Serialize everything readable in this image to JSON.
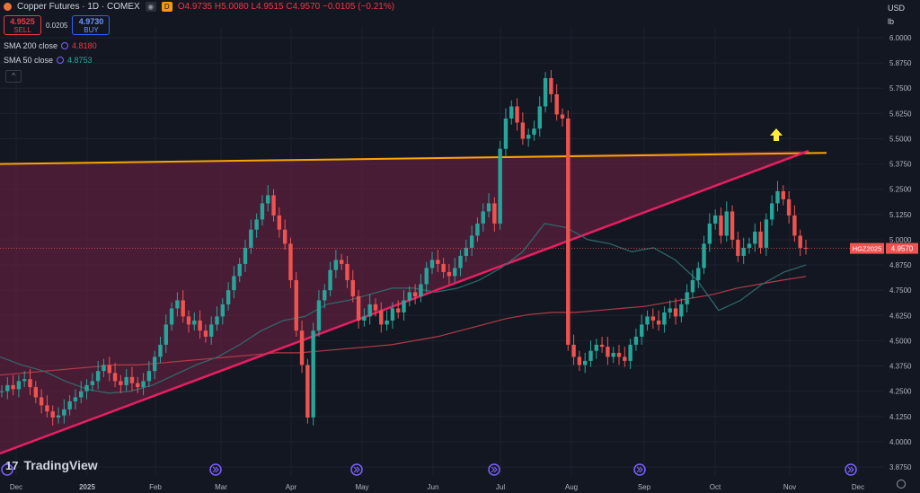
{
  "header": {
    "title": "Copper Futures · 1D · COMEX",
    "open": "O4.9735",
    "high": "H5.0080",
    "low": "L4.9515",
    "close": "C4.9570",
    "change": "−0.0105 (−0.21%)",
    "badge_d": "D"
  },
  "trade": {
    "sell_price": "4.9525",
    "sell_label": "SELL",
    "spread": "0.0205",
    "buy_price": "4.9730",
    "buy_label": "BUY"
  },
  "indicators": [
    {
      "label": "SMA 200 close",
      "value": "4.8180",
      "color": "#f23645"
    },
    {
      "label": "SMA 50 close",
      "value": "4.8753",
      "color": "#26a69a"
    }
  ],
  "collapse_icon": "^",
  "right_header": {
    "currency": "USD",
    "unit": "lb"
  },
  "logo_text": "TradingView",
  "logo_mark": "17",
  "colors": {
    "background": "#131722",
    "up": "#26a69a",
    "down": "#ef5350",
    "resistance": "#f7a600",
    "trendline": "#e91e63",
    "triangle_fill": "#5c1f3d",
    "arrow": "#ffeb3b",
    "sma200": "#b23a48",
    "sma50": "#2f6b6b"
  },
  "chart_data": {
    "type": "candlestick",
    "symbol_tag": "HGZ2025",
    "last_price": "4.9570",
    "y_ticks": [
      "6.0000",
      "5.8750",
      "5.7500",
      "5.6250",
      "5.5000",
      "5.3750",
      "5.2500",
      "5.1250",
      "5.0000",
      "4.8750",
      "4.7500",
      "4.6250",
      "4.5000",
      "4.3750",
      "4.2500",
      "4.1250",
      "4.0000",
      "3.8750"
    ],
    "x_ticks": [
      "Dec",
      "2025",
      "Feb",
      "Mar",
      "Apr",
      "May",
      "Jun",
      "Jul",
      "Aug",
      "Sep",
      "Oct",
      "Nov",
      "Dec"
    ],
    "events": [
      "Feb",
      "Apr",
      "Jun",
      "Aug",
      "Oct",
      "Dec"
    ],
    "ylim": [
      3.85,
      6.03
    ],
    "close_series": [
      4.25,
      4.28,
      4.26,
      4.3,
      4.31,
      4.27,
      4.22,
      4.18,
      4.15,
      4.12,
      4.13,
      4.16,
      4.2,
      4.22,
      4.25,
      4.28,
      4.3,
      4.35,
      4.38,
      4.34,
      4.3,
      4.28,
      4.32,
      4.29,
      4.27,
      4.3,
      4.35,
      4.42,
      4.48,
      4.58,
      4.66,
      4.7,
      4.62,
      4.58,
      4.6,
      4.55,
      4.52,
      4.58,
      4.62,
      4.68,
      4.75,
      4.82,
      4.88,
      4.96,
      5.05,
      5.1,
      5.18,
      5.22,
      5.12,
      5.05,
      4.98,
      4.8,
      4.55,
      4.38,
      4.12,
      4.55,
      4.7,
      4.75,
      4.85,
      4.9,
      4.88,
      4.8,
      4.72,
      4.6,
      4.62,
      4.68,
      4.65,
      4.58,
      4.6,
      4.66,
      4.64,
      4.7,
      4.74,
      4.72,
      4.78,
      4.86,
      4.9,
      4.88,
      4.84,
      4.82,
      4.86,
      4.92,
      4.96,
      5.02,
      5.08,
      5.14,
      5.18,
      5.08,
      5.45,
      5.6,
      5.66,
      5.58,
      5.5,
      5.52,
      5.55,
      5.66,
      5.8,
      5.72,
      5.62,
      5.6,
      4.48,
      4.42,
      4.38,
      4.4,
      4.45,
      4.48,
      4.47,
      4.42,
      4.44,
      4.42,
      4.4,
      4.48,
      4.52,
      4.58,
      4.62,
      4.6,
      4.58,
      4.64,
      4.66,
      4.62,
      4.68,
      4.74,
      4.8,
      4.86,
      4.98,
      5.08,
      5.12,
      5.02,
      5.14,
      5.0,
      4.92,
      4.96,
      4.98,
      5.04,
      4.96,
      5.1,
      5.18,
      5.24,
      5.2,
      5.12,
      5.02,
      4.96,
      4.957
    ],
    "sma200": [
      4.33,
      4.34,
      4.35,
      4.36,
      4.37,
      4.38,
      4.38,
      4.39,
      4.4,
      4.41,
      4.42,
      4.43,
      4.44,
      4.44,
      4.45,
      4.46,
      4.47,
      4.48,
      4.5,
      4.52,
      4.55,
      4.58,
      4.61,
      4.63,
      4.64,
      4.64,
      4.65,
      4.66,
      4.67,
      4.69,
      4.71,
      4.73,
      4.76,
      4.78,
      4.8,
      4.818
    ],
    "sma50": [
      4.42,
      4.38,
      4.35,
      4.3,
      4.26,
      4.24,
      4.25,
      4.28,
      4.33,
      4.38,
      4.42,
      4.48,
      4.55,
      4.6,
      4.62,
      4.68,
      4.7,
      4.73,
      4.76,
      4.76,
      4.74,
      4.76,
      4.8,
      4.86,
      4.94,
      5.08,
      5.06,
      5.0,
      4.98,
      4.94,
      4.96,
      4.9,
      4.8,
      4.65,
      4.7,
      4.78,
      4.84,
      4.875
    ]
  }
}
